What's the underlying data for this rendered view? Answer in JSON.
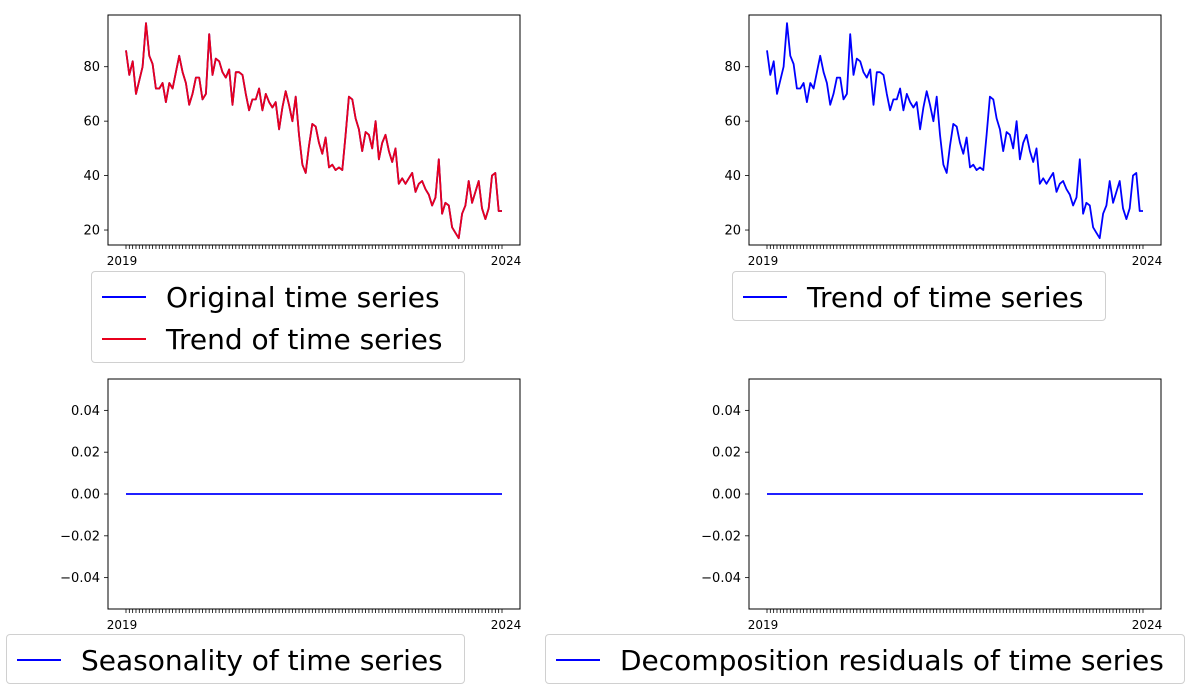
{
  "chart_data": [
    {
      "type": "line",
      "xlabel": "",
      "ylabel": "",
      "ylim": [
        14.5,
        99
      ],
      "yticks": [
        20,
        40,
        60,
        80
      ],
      "xtick_labels": [
        "2019",
        "2024"
      ],
      "grid": false,
      "legend": "below",
      "series": [
        {
          "name": "Original time series",
          "color": "#0000ff",
          "values": [
            86,
            77,
            82,
            70,
            75,
            80,
            96,
            84,
            81,
            72,
            72,
            74,
            67,
            74,
            72,
            78,
            84,
            78,
            74,
            66,
            70,
            76,
            76,
            68,
            70,
            92,
            77,
            83,
            82,
            78,
            76,
            79,
            66,
            78,
            78,
            77,
            70,
            64,
            68,
            68,
            72,
            64,
            70,
            67,
            65,
            67,
            57,
            65,
            71,
            66,
            60,
            69,
            55,
            44,
            41,
            51,
            59,
            58,
            52,
            48,
            54,
            43,
            44,
            42,
            43,
            42,
            55,
            69,
            68,
            61,
            57,
            49,
            56,
            55,
            50,
            60,
            46,
            52,
            55,
            49,
            45,
            50,
            37,
            39,
            37,
            39,
            41,
            34,
            37,
            38,
            35,
            33,
            29,
            32,
            46,
            26,
            30,
            29,
            21,
            19,
            17,
            26,
            29,
            38,
            30,
            34,
            38,
            28,
            24,
            28,
            40,
            41,
            27,
            27
          ]
        },
        {
          "name": "Trend of time series",
          "color": "#e8001c",
          "values": [
            86,
            77,
            82,
            70,
            75,
            80,
            96,
            84,
            81,
            72,
            72,
            74,
            67,
            74,
            72,
            78,
            84,
            78,
            74,
            66,
            70,
            76,
            76,
            68,
            70,
            92,
            77,
            83,
            82,
            78,
            76,
            79,
            66,
            78,
            78,
            77,
            70,
            64,
            68,
            68,
            72,
            64,
            70,
            67,
            65,
            67,
            57,
            65,
            71,
            66,
            60,
            69,
            55,
            44,
            41,
            51,
            59,
            58,
            52,
            48,
            54,
            43,
            44,
            42,
            43,
            42,
            55,
            69,
            68,
            61,
            57,
            49,
            56,
            55,
            50,
            60,
            46,
            52,
            55,
            49,
            45,
            50,
            37,
            39,
            37,
            39,
            41,
            34,
            37,
            38,
            35,
            33,
            29,
            32,
            46,
            26,
            30,
            29,
            21,
            19,
            17,
            26,
            29,
            38,
            30,
            34,
            38,
            28,
            24,
            28,
            40,
            41,
            27,
            27
          ]
        }
      ]
    },
    {
      "type": "line",
      "xlabel": "",
      "ylabel": "",
      "ylim": [
        14.5,
        99
      ],
      "yticks": [
        20,
        40,
        60,
        80
      ],
      "xtick_labels": [
        "2019",
        "2024"
      ],
      "grid": false,
      "legend": "below",
      "series": [
        {
          "name": "Trend of time series",
          "color": "#0000ff",
          "values": [
            86,
            77,
            82,
            70,
            75,
            80,
            96,
            84,
            81,
            72,
            72,
            74,
            67,
            74,
            72,
            78,
            84,
            78,
            74,
            66,
            70,
            76,
            76,
            68,
            70,
            92,
            77,
            83,
            82,
            78,
            76,
            79,
            66,
            78,
            78,
            77,
            70,
            64,
            68,
            68,
            72,
            64,
            70,
            67,
            65,
            67,
            57,
            65,
            71,
            66,
            60,
            69,
            55,
            44,
            41,
            51,
            59,
            58,
            52,
            48,
            54,
            43,
            44,
            42,
            43,
            42,
            55,
            69,
            68,
            61,
            57,
            49,
            56,
            55,
            50,
            60,
            46,
            52,
            55,
            49,
            45,
            50,
            37,
            39,
            37,
            39,
            41,
            34,
            37,
            38,
            35,
            33,
            29,
            32,
            46,
            26,
            30,
            29,
            21,
            19,
            17,
            26,
            29,
            38,
            30,
            34,
            38,
            28,
            24,
            28,
            40,
            41,
            27,
            27
          ]
        }
      ]
    },
    {
      "type": "line",
      "xlabel": "",
      "ylabel": "",
      "ylim": [
        -0.055,
        0.055
      ],
      "yticks": [
        -0.04,
        -0.02,
        0.0,
        0.02,
        0.04
      ],
      "ytick_labels": [
        "−0.04",
        "−0.02",
        "0.00",
        "0.02",
        "0.04"
      ],
      "xtick_labels": [
        "2019",
        "2024"
      ],
      "grid": false,
      "legend": "below",
      "series": [
        {
          "name": "Seasonality of time series",
          "color": "#0000ff",
          "constant": 0,
          "count": 114
        }
      ]
    },
    {
      "type": "line",
      "xlabel": "",
      "ylabel": "",
      "ylim": [
        -0.055,
        0.055
      ],
      "yticks": [
        -0.04,
        -0.02,
        0.0,
        0.02,
        0.04
      ],
      "ytick_labels": [
        "−0.04",
        "−0.02",
        "0.00",
        "0.02",
        "0.04"
      ],
      "xtick_labels": [
        "2019",
        "2024"
      ],
      "grid": false,
      "legend": "below",
      "series": [
        {
          "name": "Decomposition residuals of time series",
          "color": "#0000ff",
          "constant": 0,
          "count": 114
        }
      ]
    }
  ]
}
